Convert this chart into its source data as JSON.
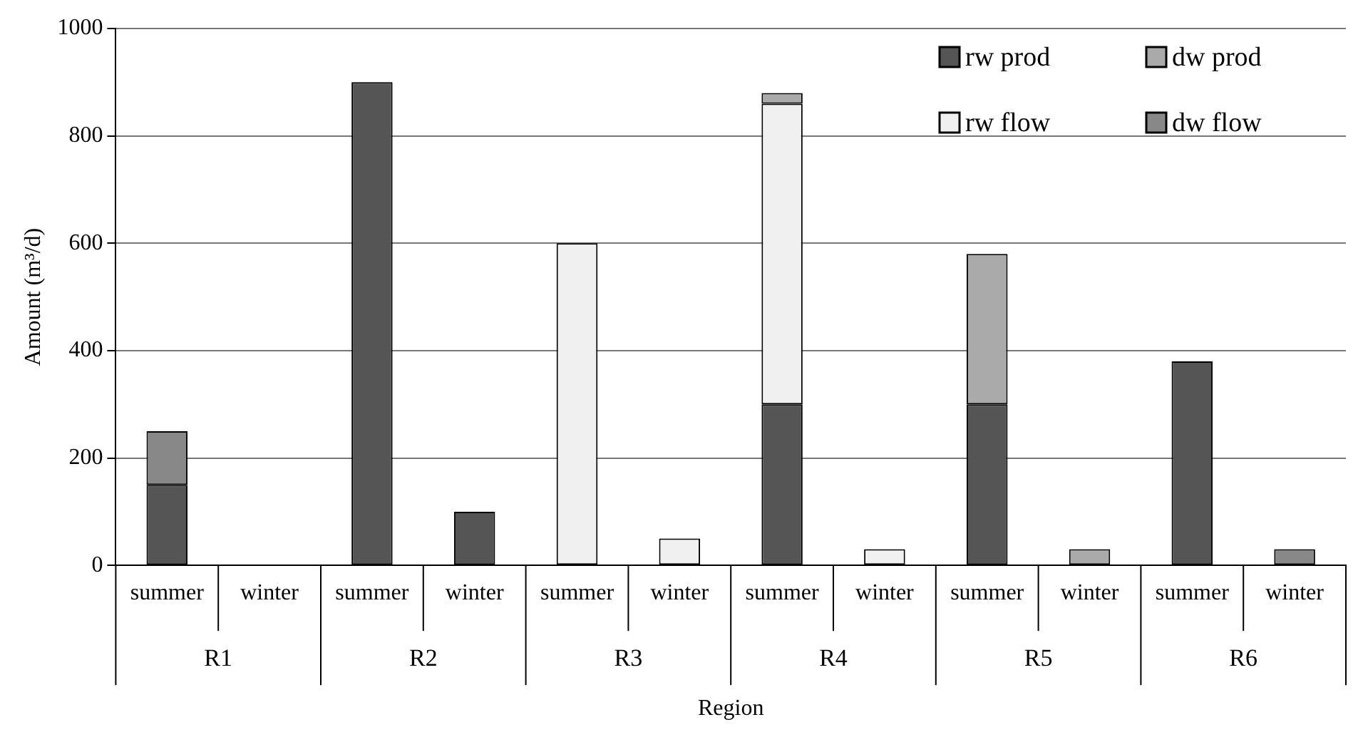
{
  "chart_data": {
    "type": "bar",
    "stacked": true,
    "xlabel": "Region",
    "ylabel": "Amount (m³/d)",
    "categories": [
      "summer",
      "winter",
      "summer",
      "winter",
      "summer",
      "winter",
      "summer",
      "winter",
      "summer",
      "winter",
      "summer",
      "winter"
    ],
    "annotations": [
      "R1",
      "R2",
      "R3",
      "R4",
      "R5",
      "R6"
    ],
    "series": [
      {
        "name": "rw prod",
        "color": "#555555",
        "values": [
          150,
          null,
          900,
          100,
          null,
          null,
          300,
          null,
          300,
          null,
          380,
          null
        ]
      },
      {
        "name": "rw flow",
        "color": "#f0f0f0",
        "values": [
          null,
          null,
          null,
          null,
          600,
          50,
          560,
          30,
          null,
          null,
          null,
          null
        ]
      },
      {
        "name": "dw prod",
        "color": "#aaaaaa",
        "values": [
          null,
          null,
          null,
          null,
          null,
          null,
          20,
          null,
          280,
          30,
          null,
          null
        ]
      },
      {
        "name": "dw flow",
        "color": "#888888",
        "values": [
          100,
          null,
          null,
          null,
          null,
          null,
          null,
          null,
          null,
          null,
          null,
          30
        ]
      }
    ],
    "ylim": [
      0,
      1000
    ],
    "yticks": [
      0,
      200,
      400,
      600,
      800,
      1000
    ],
    "grid": "y",
    "legend": "top right"
  }
}
